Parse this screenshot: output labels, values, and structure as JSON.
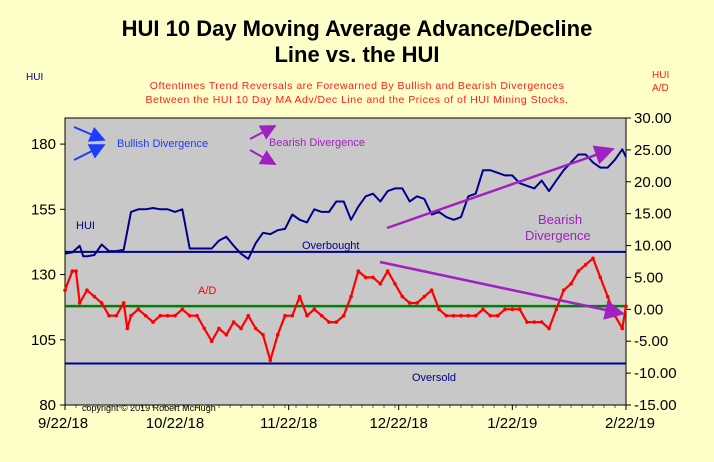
{
  "title_line1": "HUI 10 Day Moving Average Advance/Decline",
  "title_line2": "Line vs. the HUI",
  "subtitle_line1": "Oftentimes Trend Reversals are Forewarned By Bullish and Bearish Divergences",
  "subtitle_line2": "Between the HUI 10 Day MA Adv/Dec Line and the Prices of of HUI Mining Stocks.",
  "left_axis_title": "HUI",
  "right_axis_title_1": "HUI",
  "right_axis_title_2": "A/D",
  "copyright": "copyright © 2019 Robert McHugh",
  "colors": {
    "background": "#fefec8",
    "plot": "#c8c8c8",
    "hui": "#00008b",
    "ad": "#ff0000",
    "zero": "#008000",
    "bull": "#1e3cff",
    "bear": "#a020c0"
  },
  "annotations": {
    "bullish": "Bullish Divergence",
    "bearish": "Bearish Divergence",
    "bearish_on_chart_1": "Bearish",
    "bearish_on_chart_2": "Divergence",
    "hui_label": "HUI",
    "ad_label": "A/D",
    "overbought": "Overbought",
    "oversold": "Oversold"
  },
  "chart_data": {
    "type": "line",
    "x_tick_labels": [
      "9/22/18",
      "10/22/18",
      "11/22/18",
      "12/22/18",
      "1/22/19",
      "2/22/19"
    ],
    "x_range": [
      0,
      153
    ],
    "left_axis": {
      "ylim": [
        80,
        190
      ],
      "ticks": [
        "80",
        "105",
        "130",
        "155",
        "180"
      ]
    },
    "right_axis": {
      "ylim": [
        -15,
        30
      ],
      "ticks": [
        "-15.00",
        "-10.00",
        "-5.00",
        "0.00",
        "5.00",
        "10.00",
        "15.00",
        "20.00",
        "25.00",
        "30.00"
      ]
    },
    "series": [
      {
        "name": "HUI",
        "axis": "left",
        "x": [
          0,
          2,
          4,
          5,
          6,
          8,
          10,
          12,
          14,
          16,
          18,
          20,
          22,
          24,
          26,
          28,
          30,
          32,
          34,
          36,
          38,
          39,
          40,
          42,
          44,
          46,
          48,
          50,
          52,
          54,
          56,
          58,
          60,
          62,
          64,
          66,
          68,
          70,
          72,
          74,
          76,
          78,
          80,
          82,
          84,
          86,
          88,
          90,
          92,
          94,
          96,
          98,
          100,
          102,
          104,
          106,
          108,
          110,
          112,
          114,
          116,
          118,
          120,
          122,
          124,
          126,
          128,
          130,
          132,
          134,
          136,
          138,
          140,
          142,
          144,
          146,
          148,
          150,
          152,
          153
        ],
        "values": [
          138,
          138.5,
          141,
          137,
          137,
          137.5,
          141.5,
          139,
          139,
          139.5,
          154,
          155,
          155,
          155.5,
          155,
          155,
          154,
          155,
          140,
          140,
          140,
          140,
          140,
          143,
          144.5,
          141,
          138,
          136,
          142,
          146,
          145.5,
          147,
          147.5,
          153,
          151,
          150,
          155,
          154,
          154,
          158,
          158,
          151,
          156,
          160,
          161,
          158,
          162,
          163,
          163,
          158,
          160,
          159,
          153,
          154,
          152,
          151,
          152,
          160,
          161,
          170,
          170,
          169,
          168,
          168,
          165,
          164,
          163,
          166,
          162,
          166,
          170,
          173,
          176,
          176,
          173,
          171,
          171,
          174,
          178,
          175
        ]
      },
      {
        "name": "A/D",
        "axis": "right",
        "x": [
          0,
          2,
          3,
          4,
          6,
          8,
          10,
          12,
          14,
          16,
          17,
          18,
          20,
          22,
          24,
          26,
          28,
          30,
          32,
          34,
          36,
          38,
          40,
          42,
          44,
          46,
          48,
          50,
          52,
          54,
          56,
          58,
          60,
          62,
          64,
          66,
          68,
          70,
          72,
          74,
          76,
          78,
          80,
          82,
          84,
          86,
          88,
          90,
          92,
          94,
          96,
          98,
          100,
          102,
          104,
          106,
          108,
          110,
          112,
          114,
          116,
          118,
          120,
          122,
          124,
          126,
          128,
          130,
          132,
          134,
          136,
          138,
          140,
          142,
          144,
          146,
          148,
          150,
          152,
          153
        ],
        "values": [
          3,
          6,
          6,
          1,
          3,
          2,
          1,
          -1,
          -1,
          1,
          -3,
          -1,
          0,
          -1,
          -2,
          -1,
          -1,
          -1,
          0,
          -1,
          -1,
          -3,
          -5,
          -3,
          -4,
          -2,
          -3,
          -1,
          -3,
          -4,
          -8,
          -4,
          -1,
          -1,
          2,
          -1,
          0,
          -1,
          -2,
          -2,
          -1,
          2,
          6,
          5,
          5,
          4,
          6,
          4,
          2,
          1,
          1,
          2,
          3,
          0,
          -1,
          -1,
          -1,
          -1,
          -1,
          0,
          -1,
          -1,
          0,
          0,
          0,
          -2,
          -2,
          -2,
          -3,
          0,
          3,
          4,
          6,
          7,
          8,
          5,
          2,
          -1,
          -3,
          0.5
        ]
      }
    ],
    "reference_lines": [
      {
        "label": "Overbought",
        "axis": "right",
        "value": 9
      },
      {
        "label": "zero",
        "axis": "right",
        "value": 0.5
      },
      {
        "label": "Oversold",
        "axis": "right",
        "value": -8.5
      }
    ]
  }
}
